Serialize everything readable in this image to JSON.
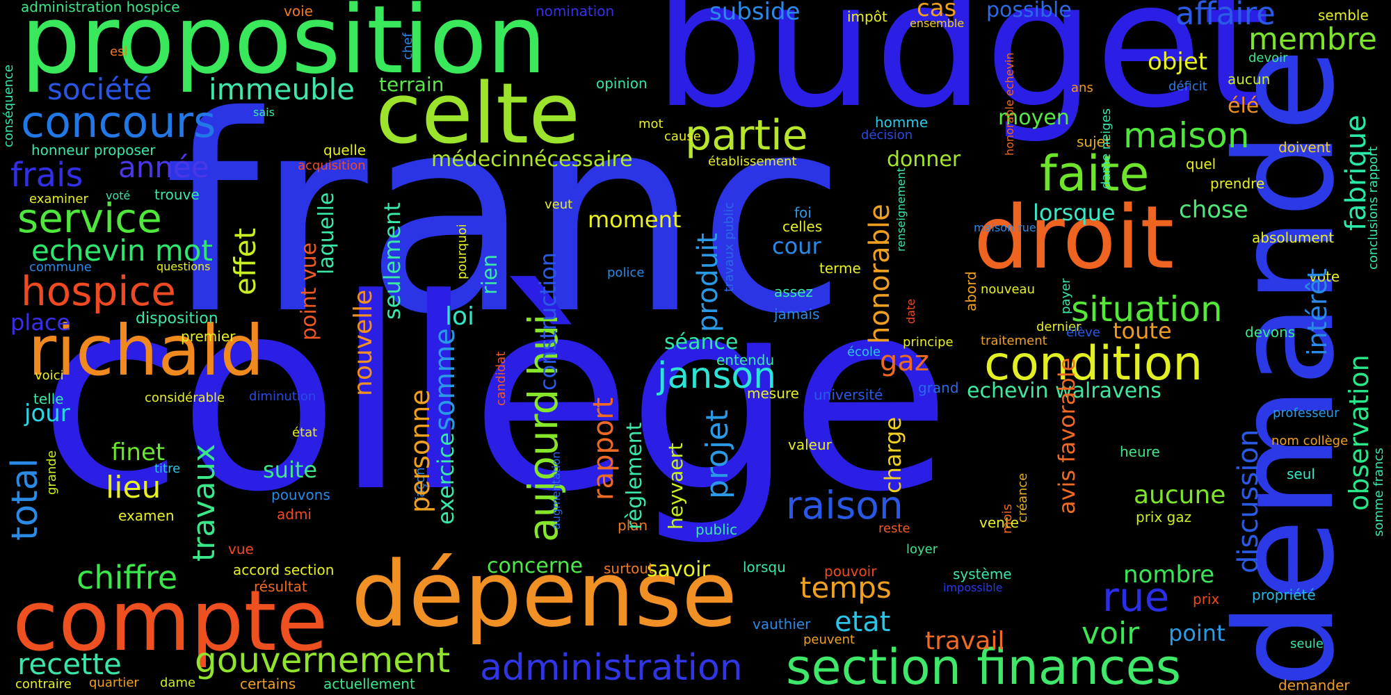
{
  "words": [
    {
      "text": "franc",
      "color": "#2b35e6"
    },
    {
      "text": "collège",
      "color": "#2b1fe6"
    },
    {
      "text": "budget",
      "color": "#2b1fe6"
    },
    {
      "text": "demande",
      "color": "#2b3ae6"
    },
    {
      "text": "proposition",
      "color": "#3ae85b"
    },
    {
      "text": "dépense",
      "color": "#f19024"
    },
    {
      "text": "compte",
      "color": "#ef5020"
    },
    {
      "text": "celte",
      "color": "#9be42b"
    },
    {
      "text": "droit",
      "color": "#ef6420"
    },
    {
      "text": "richald",
      "color": "#f0891e"
    },
    {
      "text": "section finances",
      "color": "#3fe868"
    },
    {
      "text": "condition",
      "color": "#e2f022"
    },
    {
      "text": "aujourd hui",
      "color": "#85e62a"
    },
    {
      "text": "partie",
      "color": "#b7e62a"
    },
    {
      "text": "faite",
      "color": "#6ee42b"
    },
    {
      "text": "concours",
      "color": "#2278e6"
    },
    {
      "text": "service",
      "color": "#4ee83b"
    },
    {
      "text": "hospice",
      "color": "#ef4a22"
    },
    {
      "text": "gouvernement",
      "color": "#91e42d"
    },
    {
      "text": "administration",
      "color": "#3036e6"
    },
    {
      "text": "raison",
      "color": "#2a58e6"
    },
    {
      "text": "janson",
      "color": "#2ce6d5"
    },
    {
      "text": "situation",
      "color": "#55e838"
    },
    {
      "text": "maison",
      "color": "#4ee83b"
    },
    {
      "text": "membre",
      "color": "#7be42b"
    },
    {
      "text": "affaire",
      "color": "#2a5ae6"
    },
    {
      "text": "immeuble",
      "color": "#3fe8a8"
    },
    {
      "text": "société",
      "color": "#2a56e6"
    },
    {
      "text": "frais",
      "color": "#3230e6"
    },
    {
      "text": "année",
      "color": "#4a38e6"
    },
    {
      "text": "echevin mot",
      "color": "#2ee86e"
    },
    {
      "text": "médecinnécessaire",
      "color": "#aee62a"
    },
    {
      "text": "temps",
      "color": "#f0a020"
    },
    {
      "text": "rue",
      "color": "#2a2ee6"
    },
    {
      "text": "voir",
      "color": "#3ae854"
    },
    {
      "text": "chiffre",
      "color": "#3ae84a"
    },
    {
      "text": "recette",
      "color": "#38e6a8"
    },
    {
      "text": "etat",
      "color": "#2ac4e6"
    },
    {
      "text": "travail",
      "color": "#ef6a22"
    },
    {
      "text": "point",
      "color": "#2a9ce6"
    },
    {
      "text": "nombre",
      "color": "#38e658"
    },
    {
      "text": "aucune",
      "color": "#7ce62a"
    },
    {
      "text": "toute",
      "color": "#f09a20"
    },
    {
      "text": "lieu",
      "color": "#e8f022"
    },
    {
      "text": "jour",
      "color": "#2ad6e6"
    },
    {
      "text": "place",
      "color": "#3a30e6"
    },
    {
      "text": "finet",
      "color": "#6ae62b"
    },
    {
      "text": "suite",
      "color": "#3ee88a"
    },
    {
      "text": "séance",
      "color": "#32e6a6"
    },
    {
      "text": "loi",
      "color": "#34e6c6"
    },
    {
      "text": "moment",
      "color": "#e8f022"
    },
    {
      "text": "savoir",
      "color": "#e8f022"
    },
    {
      "text": "concerne",
      "color": "#4ee84b"
    },
    {
      "text": "cour",
      "color": "#2a8ae6"
    },
    {
      "text": "chose",
      "color": "#4ee87a"
    },
    {
      "text": "lorsque",
      "color": "#3ae8c8"
    },
    {
      "text": "moyen",
      "color": "#5ae84a"
    },
    {
      "text": "objet",
      "color": "#e8f022"
    },
    {
      "text": "donner",
      "color": "#a6e62a"
    },
    {
      "text": "gaz",
      "color": "#ef6a20"
    },
    {
      "text": "echevin walravens",
      "color": "#40e8a0"
    },
    {
      "text": "subside",
      "color": "#2a8ae6"
    },
    {
      "text": "cas",
      "color": "#f0a020"
    },
    {
      "text": "possible",
      "color": "#2a6ae6"
    },
    {
      "text": "terrain",
      "color": "#5ae84a"
    },
    {
      "text": "opinion",
      "color": "#30e6a8"
    },
    {
      "text": "nomination",
      "color": "#3830e6"
    },
    {
      "text": "impôt",
      "color": "#e8f022"
    },
    {
      "text": "ensemble",
      "color": "#f0d020"
    },
    {
      "text": "semble",
      "color": "#e8f022"
    },
    {
      "text": "devoir",
      "color": "#3ae88a"
    },
    {
      "text": "aucun",
      "color": "#c8f022"
    },
    {
      "text": "ans",
      "color": "#f09a20"
    },
    {
      "text": "déficit",
      "color": "#2a7ae6"
    },
    {
      "text": "élé",
      "color": "#f09020"
    },
    {
      "text": "sujet",
      "color": "#e8b020"
    },
    {
      "text": "quel",
      "color": "#e8f022"
    },
    {
      "text": "prendre",
      "color": "#e8f022"
    },
    {
      "text": "vote",
      "color": "#e8f022"
    },
    {
      "text": "absolument",
      "color": "#e8f022"
    },
    {
      "text": "nouveau",
      "color": "#e8f022"
    },
    {
      "text": "dernier",
      "color": "#e8f022"
    },
    {
      "text": "devons",
      "color": "#3ae88a"
    },
    {
      "text": "élève",
      "color": "#2a5ae6"
    },
    {
      "text": "traitement",
      "color": "#f0a020"
    },
    {
      "text": "principe",
      "color": "#e8f022"
    },
    {
      "text": "professeur",
      "color": "#2a9ae6"
    },
    {
      "text": "heure",
      "color": "#3ae88a"
    },
    {
      "text": "seul",
      "color": "#3ae8c8"
    },
    {
      "text": "nom collège",
      "color": "#f0a020"
    },
    {
      "text": "prix gaz",
      "color": "#c8f022"
    },
    {
      "text": "propriété",
      "color": "#2ab8e6"
    },
    {
      "text": "seule",
      "color": "#3ae8a8"
    },
    {
      "text": "demander",
      "color": "#f09a20"
    },
    {
      "text": "prix",
      "color": "#ef4a22"
    },
    {
      "text": "système",
      "color": "#3ae8a8"
    },
    {
      "text": "impossible",
      "color": "#2a3ae6"
    },
    {
      "text": "loyer",
      "color": "#3ae88a"
    },
    {
      "text": "reste",
      "color": "#ef5a22"
    },
    {
      "text": "vente",
      "color": "#e8f022"
    },
    {
      "text": "mois",
      "color": "#ef6a22"
    },
    {
      "text": "créance",
      "color": "#e8b020"
    },
    {
      "text": "pouvoir",
      "color": "#ef4a22"
    },
    {
      "text": "peuvent",
      "color": "#f0a020"
    },
    {
      "text": "vauthier",
      "color": "#2a8ae6"
    },
    {
      "text": "surtout",
      "color": "#ef7a22"
    },
    {
      "text": "lorsqu",
      "color": "#3ae8a8"
    },
    {
      "text": "public",
      "color": "#3ae8a8"
    },
    {
      "text": "plan",
      "color": "#ef7a22"
    },
    {
      "text": "valeur",
      "color": "#e8f022"
    },
    {
      "text": "mesure",
      "color": "#e8f022"
    },
    {
      "text": "université",
      "color": "#2a5ae6"
    },
    {
      "text": "grand",
      "color": "#2a6ae6"
    },
    {
      "text": "école",
      "color": "#2ac8e6"
    },
    {
      "text": "entendu",
      "color": "#3ae8a8"
    },
    {
      "text": "jamais",
      "color": "#2a8ae6"
    },
    {
      "text": "assez",
      "color": "#3ae8a8"
    },
    {
      "text": "terme",
      "color": "#e8f022"
    },
    {
      "text": "police",
      "color": "#2a8ae6"
    },
    {
      "text": "celles",
      "color": "#e8f022"
    },
    {
      "text": "foi",
      "color": "#2a9ae6"
    },
    {
      "text": "établissement",
      "color": "#e8f022"
    },
    {
      "text": "décision",
      "color": "#2a4ae6"
    },
    {
      "text": "homme",
      "color": "#2ac8e6"
    },
    {
      "text": "mot",
      "color": "#e8f022"
    },
    {
      "text": "cause",
      "color": "#e8f022"
    },
    {
      "text": "veut",
      "color": "#e8f022"
    },
    {
      "text": "état",
      "color": "#e8f022"
    },
    {
      "text": "pouvons",
      "color": "#2a8ae6"
    },
    {
      "text": "admi",
      "color": "#ef4a22"
    },
    {
      "text": "vue",
      "color": "#ef4a22"
    },
    {
      "text": "accord section",
      "color": "#e8f022"
    },
    {
      "text": "résultat",
      "color": "#ef6a22"
    },
    {
      "text": "certains",
      "color": "#f0a020"
    },
    {
      "text": "actuellement",
      "color": "#3ae88a"
    },
    {
      "text": "contraire",
      "color": "#e8f022"
    },
    {
      "text": "quartier",
      "color": "#f0a020"
    },
    {
      "text": "dame",
      "color": "#c8f022"
    },
    {
      "text": "examen",
      "color": "#e8f022"
    },
    {
      "text": "titre",
      "color": "#2ac8e6"
    },
    {
      "text": "telle",
      "color": "#3ae8a8"
    },
    {
      "text": "considérable",
      "color": "#e8f022"
    },
    {
      "text": "diminution",
      "color": "#2a4ae6"
    },
    {
      "text": "voici",
      "color": "#e8f022"
    },
    {
      "text": "disposition",
      "color": "#3ae8a8"
    },
    {
      "text": "premier",
      "color": "#e8f022"
    },
    {
      "text": "commune",
      "color": "#2a8ae6"
    },
    {
      "text": "questions",
      "color": "#e8f022"
    },
    {
      "text": "examiner",
      "color": "#e8f022"
    },
    {
      "text": "voté",
      "color": "#3ae8a8"
    },
    {
      "text": "trouve",
      "color": "#3ae8a8"
    },
    {
      "text": "honneur proposer",
      "color": "#3ae8a8"
    },
    {
      "text": "acquisition",
      "color": "#ef4a22"
    },
    {
      "text": "quelle",
      "color": "#e8f022"
    },
    {
      "text": "sais",
      "color": "#3ae8a8"
    },
    {
      "text": "esl",
      "color": "#ef7a22"
    },
    {
      "text": "voie",
      "color": "#ef7a22"
    },
    {
      "text": "administration hospice",
      "color": "#3ae88a"
    },
    {
      "text": "conséquence",
      "color": "#3ae8a8"
    },
    {
      "text": "chef",
      "color": "#2a8ae6"
    },
    {
      "text": "grande",
      "color": "#c8f022"
    },
    {
      "text": "façon",
      "color": "#2a8ae6"
    },
    {
      "text": "augmentation",
      "color": "#2a6ae6"
    },
    {
      "text": "candidat",
      "color": "#ef5a22"
    },
    {
      "text": "pourquoi",
      "color": "#e8f022"
    },
    {
      "text": "rien",
      "color": "#3ae8a8"
    },
    {
      "text": "travaux public",
      "color": "#2a6ae6"
    },
    {
      "text": "renseignement",
      "color": "#3ae8a8"
    },
    {
      "text": "maison rue",
      "color": "#2a8ae6"
    },
    {
      "text": "honorable echevin",
      "color": "#ef6a22"
    },
    {
      "text": "dame neiges",
      "color": "#3ae8a8"
    },
    {
      "text": "payer",
      "color": "#3ae8a8"
    },
    {
      "text": "abord",
      "color": "#f0a020"
    },
    {
      "text": "date",
      "color": "#ef4a22"
    },
    {
      "text": "doivent",
      "color": "#f0d020"
    },
    {
      "text": "conclusions rapport",
      "color": "#3ae8a8"
    },
    {
      "text": "somme francs",
      "color": "#3ae8a8"
    },
    {
      "text": "fabrique",
      "color": "#2ae8a8"
    },
    {
      "text": "intérêt",
      "color": "#2a8ae6"
    },
    {
      "text": "observation",
      "color": "#2ae88a"
    },
    {
      "text": "discussion",
      "color": "#2a5ae6"
    },
    {
      "text": "avis favorable",
      "color": "#ef6a22"
    },
    {
      "text": "honorable",
      "color": "#f0a020"
    },
    {
      "text": "charge",
      "color": "#f0d020"
    },
    {
      "text": "produit",
      "color": "#2a9ae6"
    },
    {
      "text": "projet",
      "color": "#2a9ae6"
    },
    {
      "text": "heyvaert",
      "color": "#c8f022"
    },
    {
      "text": "construction",
      "color": "#2a5ae6"
    },
    {
      "text": "règlement",
      "color": "#3ae8a8"
    },
    {
      "text": "rapport",
      "color": "#ef6a22"
    },
    {
      "text": "somme",
      "color": "#2a9ae6"
    },
    {
      "text": "exercice",
      "color": "#3ae8a8"
    },
    {
      "text": "personne",
      "color": "#f0a020"
    },
    {
      "text": "seulement",
      "color": "#3ae8a8"
    },
    {
      "text": "nouvelle",
      "color": "#f09020"
    },
    {
      "text": "laquelle",
      "color": "#3ae8a8"
    },
    {
      "text": "point vue",
      "color": "#ef5a22"
    },
    {
      "text": "effet",
      "color": "#c8f022"
    },
    {
      "text": "travaux",
      "color": "#3ae88a"
    },
    {
      "text": "total",
      "color": "#2a8ae6"
    }
  ]
}
